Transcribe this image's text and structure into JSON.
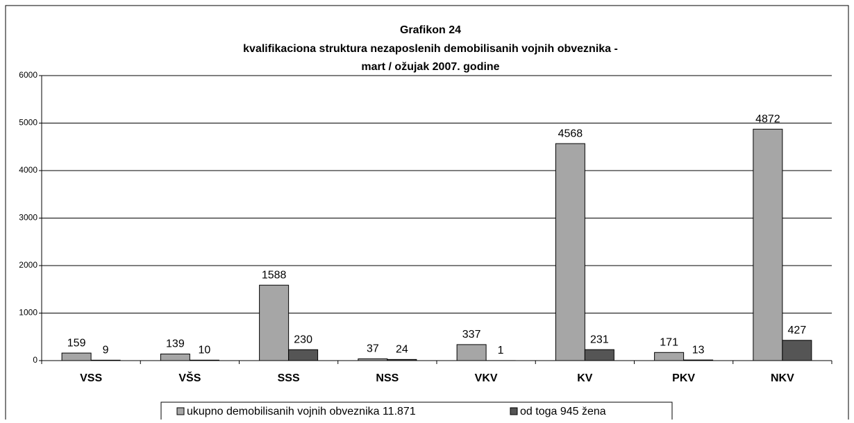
{
  "chart_data": {
    "type": "bar",
    "title": [
      "Grafikon 24",
      "kvalifikaciona struktura nezaposlenih demobilisanih vojnih obveznika -",
      "mart / ožujak 2007. godine"
    ],
    "categories": [
      "VSS",
      "VŠS",
      "SSS",
      "NSS",
      "VKV",
      "KV",
      "PKV",
      "NKV"
    ],
    "series": [
      {
        "name": "ukupno demobilisanih vojnih obveznika 11.871",
        "color": "#a6a6a6",
        "values": [
          159,
          139,
          1588,
          37,
          337,
          4568,
          171,
          4872
        ]
      },
      {
        "name": "od toga 945 žena",
        "color": "#555555",
        "values": [
          9,
          10,
          230,
          24,
          1,
          231,
          13,
          427
        ]
      }
    ],
    "ylim": [
      0,
      6000
    ],
    "yticks": [
      0,
      1000,
      2000,
      3000,
      4000,
      5000,
      6000
    ],
    "grid": true,
    "legend": "bottom"
  }
}
